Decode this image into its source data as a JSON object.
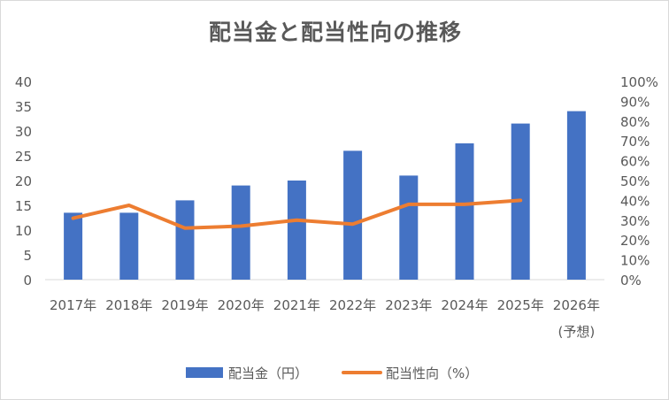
{
  "chart_data": {
    "type": "bar",
    "title": "配当金と配当性向の推移",
    "categories": [
      "2017年",
      "2018年",
      "2019年",
      "2020年",
      "2021年",
      "2022年",
      "2023年",
      "2024年",
      "2025年",
      "2026年"
    ],
    "category_sublabels": [
      "",
      "",
      "",
      "",
      "",
      "",
      "",
      "",
      "",
      "(予想)"
    ],
    "series": [
      {
        "name": "配当金（円）",
        "type": "bar",
        "axis": "left",
        "color": "#4472c4",
        "values": [
          13.5,
          13.5,
          16,
          19,
          20,
          26,
          21,
          27.5,
          31.5,
          34
        ]
      },
      {
        "name": "配当性向（%）",
        "type": "line",
        "axis": "right",
        "color": "#ed7d31",
        "values": [
          31,
          37.5,
          26,
          27,
          30,
          28,
          38,
          38,
          40,
          null
        ]
      }
    ],
    "y_left": {
      "min": 0,
      "max": 40,
      "ticks": [
        "0",
        "5",
        "10",
        "15",
        "20",
        "25",
        "30",
        "35",
        "40"
      ]
    },
    "y_right": {
      "min": 0,
      "max": 100,
      "ticks": [
        "0%",
        "10%",
        "20%",
        "30%",
        "40%",
        "50%",
        "60%",
        "70%",
        "80%",
        "90%",
        "100%"
      ]
    },
    "grid": false,
    "legend_position": "bottom"
  }
}
